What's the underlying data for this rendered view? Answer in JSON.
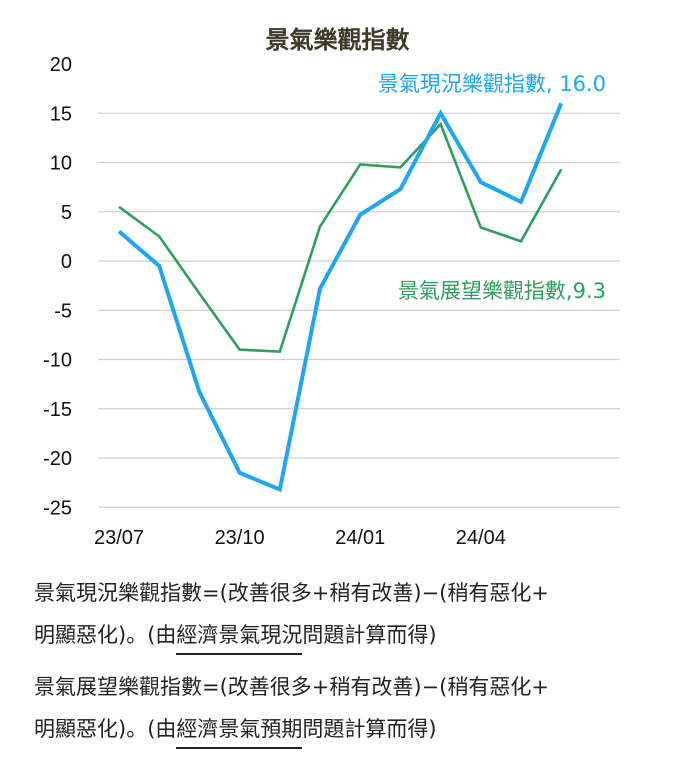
{
  "chart_data": {
    "type": "line",
    "title": "景氣樂觀指數",
    "x": [
      "23/07",
      "23/08",
      "23/09",
      "23/10",
      "23/11",
      "23/12",
      "24/01",
      "24/02",
      "24/03",
      "24/04",
      "24/05",
      "24/06"
    ],
    "xticks": [
      "23/07",
      "23/10",
      "24/01",
      "24/04"
    ],
    "ylim": [
      -25,
      20
    ],
    "yticks": [
      "20",
      "15",
      "10",
      "5",
      "0",
      "-5",
      "-10",
      "-15",
      "-20",
      "-25"
    ],
    "grid": true,
    "series": [
      {
        "name": "景氣現況樂觀指數",
        "label": "景氣現況樂觀指數, 16.0",
        "color": "#1ea7f0",
        "values": [
          3.0,
          -0.5,
          -13.3,
          -21.5,
          -23.2,
          -2.8,
          4.7,
          7.3,
          15.0,
          8.0,
          6.0,
          16.0
        ]
      },
      {
        "name": "景氣展望樂觀指數",
        "label": "景氣展望樂觀指數,9.3",
        "color": "#2e9e5e",
        "values": [
          5.5,
          2.5,
          -3.3,
          -9.0,
          -9.2,
          3.5,
          9.8,
          9.5,
          13.9,
          3.4,
          2.0,
          9.3
        ]
      }
    ]
  },
  "notes": [
    {
      "line1": "景氣現況樂觀指數=(改善很多+稍有改善)−(稍有惡化+",
      "pre": "明顯惡化)。(由",
      "ul": "經濟景氣現況",
      "post": "問題計算而得)"
    },
    {
      "line1": "景氣展望樂觀指數=(改善很多+稍有改善)−(稍有惡化+",
      "pre": "明顯惡化)。(由",
      "ul": "經濟景氣預期",
      "post": "問題計算而得)"
    }
  ]
}
